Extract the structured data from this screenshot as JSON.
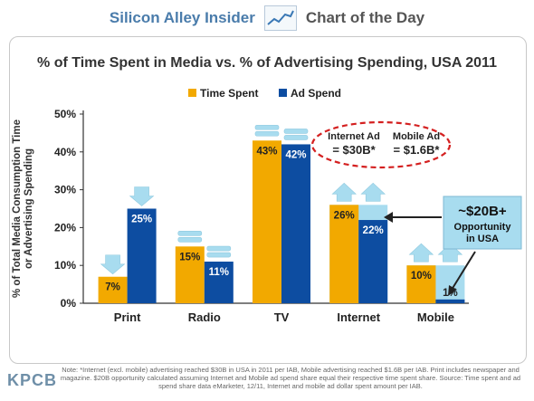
{
  "header": {
    "brand": "Silicon Alley Insider",
    "label": "Chart of the Day"
  },
  "chart_data": {
    "type": "bar",
    "title": "% of Time Spent in Media vs. % of Advertising Spending, USA 2011",
    "ylabel": "% of Total Media Consumption Time or Advertising Spending",
    "xlabel": "",
    "categories": [
      "Print",
      "Radio",
      "TV",
      "Internet",
      "Mobile"
    ],
    "series": [
      {
        "name": "Time Spent",
        "values": [
          7,
          15,
          43,
          26,
          10
        ],
        "labels": [
          "7%",
          "15%",
          "43%",
          "26%",
          "10%"
        ],
        "color": "#f2a900"
      },
      {
        "name": "Ad Spend",
        "values": [
          25,
          11,
          42,
          22,
          1
        ],
        "labels": [
          "25%",
          "11%",
          "42%",
          "22%",
          "1%"
        ],
        "color": "#0d4da1"
      }
    ],
    "ylim": [
      0,
      50
    ],
    "yticks": [
      "0%",
      "10%",
      "20%",
      "30%",
      "40%",
      "50%"
    ],
    "legend_position": "top",
    "grid": false,
    "opportunity_band": {
      "internet_top": 26,
      "mobile_top": 10,
      "color": "#a8dcef"
    },
    "arrows": {
      "Print": "down",
      "Radio": "flat",
      "TV": "flat",
      "Internet": "up",
      "Mobile": "up"
    },
    "annotations": {
      "internet_ad_label": "Internet Ad",
      "internet_ad_value": "= $30B*",
      "mobile_ad_label": "Mobile Ad",
      "mobile_ad_value": "= $1.6B*",
      "opportunity_value": "~$20B+",
      "opportunity_text": "Opportunity in USA"
    }
  },
  "footnote": "Note: *Internet (excl. mobile) advertising reached $30B in USA in 2011 per IAB, Mobile advertising reached $1.6B per IAB. Print includes newspaper and magazine. $20B opportunity calculated assuming Internet and Mobile ad spend share equal their respective time spent share. Source: Time spent and ad spend share data eMarketer, 12/11, Internet and mobile ad dollar spent amount per IAB.",
  "logo_text": "KPCB"
}
